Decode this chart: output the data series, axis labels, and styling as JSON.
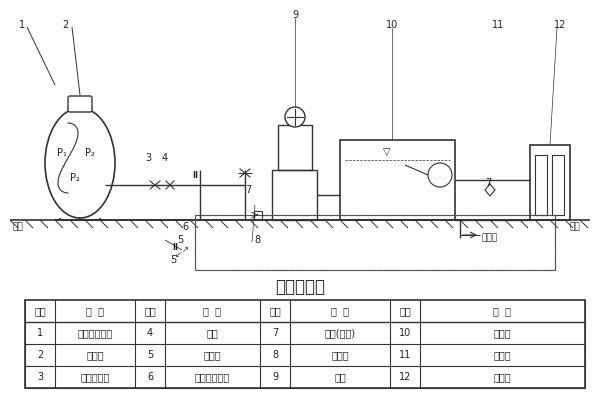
{
  "title": "工作原理图",
  "bg_color": "#ffffff",
  "table_headers": [
    "序号",
    "名  称",
    "序号",
    "名  称",
    "序号",
    "名  称",
    "序号",
    "名  称"
  ],
  "table_rows": [
    [
      "1",
      "隔膜式气压罐",
      "4",
      "蝶阀",
      "7",
      "阀阀(蝶阀)",
      "10",
      "浮球阀"
    ],
    [
      "2",
      "充气口",
      "5",
      "安全阀",
      "8",
      "止回阀",
      "11",
      "贮水池"
    ],
    [
      "3",
      "橡胶软接头",
      "6",
      "电接点压力表",
      "9",
      "水泵",
      "12",
      "电控柜"
    ]
  ],
  "line_color": "#333333",
  "text_color": "#222222",
  "label_color": "#111111"
}
